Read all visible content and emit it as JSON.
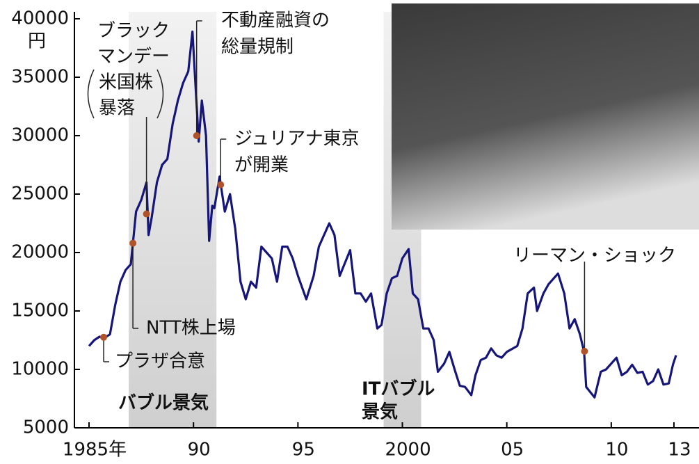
{
  "chart_data": {
    "type": "line",
    "y_unit": "円",
    "color": "#15157a",
    "xlim": [
      1984.3,
      2014.2
    ],
    "ylim": [
      5000,
      40000
    ],
    "yticks": [
      5000,
      10000,
      15000,
      20000,
      25000,
      30000,
      35000,
      40000
    ],
    "xticks": [
      {
        "value": 1985,
        "label": "1985年"
      },
      {
        "value": 1990,
        "label": "90"
      },
      {
        "value": 1995,
        "label": "95"
      },
      {
        "value": 2000,
        "label": "2000"
      },
      {
        "value": 2005,
        "label": "05"
      },
      {
        "value": 2010,
        "label": "10"
      },
      {
        "value": 2013,
        "label": "13"
      }
    ],
    "shaded": [
      {
        "lines": [
          "バブル景気"
        ],
        "start": 1986.9,
        "end": 1991.1
      },
      {
        "lines": [
          "ITバブル",
          "景気"
        ],
        "start": 1999.1,
        "end": 2000.9
      }
    ],
    "annotations": [
      {
        "lines": [
          "プラザ合意"
        ],
        "x": 1985.7,
        "value": 12750
      },
      {
        "lines": [
          "NTT株上場"
        ],
        "x": 1987.1,
        "value": 20800
      },
      {
        "lines": [
          "ブラック",
          "マンデー",
          "米国株",
          "暴落"
        ],
        "x": 1987.75,
        "value": 23300
      },
      {
        "lines": [
          "不動産融資の",
          "総量規制"
        ],
        "x": 1990.15,
        "value": 30000
      },
      {
        "lines": [
          "ジュリアナ東京",
          "が開業"
        ],
        "x": 1991.3,
        "value": 25800
      },
      {
        "lines": [
          "リーマン・ショック"
        ],
        "x": 2008.72,
        "value": 11550
      }
    ],
    "x": [
      1985.0,
      1985.25,
      1985.5,
      1985.75,
      1986.0,
      1986.25,
      1986.5,
      1986.75,
      1987.0,
      1987.25,
      1987.5,
      1987.75,
      1987.85,
      1988.0,
      1988.25,
      1988.5,
      1988.75,
      1989.0,
      1989.25,
      1989.5,
      1989.75,
      1989.95,
      1990.25,
      1990.4,
      1990.6,
      1990.75,
      1990.9,
      1991.0,
      1991.25,
      1991.5,
      1991.75,
      1992.0,
      1992.25,
      1992.5,
      1992.75,
      1993.0,
      1993.25,
      1993.5,
      1993.75,
      1994.0,
      1994.25,
      1994.5,
      1994.75,
      1995.0,
      1995.4,
      1995.75,
      1996.0,
      1996.5,
      1996.75,
      1997.0,
      1997.5,
      1997.75,
      1998.0,
      1998.25,
      1998.5,
      1998.8,
      1999.0,
      1999.25,
      1999.5,
      1999.75,
      2000.0,
      2000.3,
      2000.5,
      2000.75,
      2001.0,
      2001.25,
      2001.5,
      2001.7,
      2002.0,
      2002.25,
      2002.5,
      2002.75,
      2003.0,
      2003.3,
      2003.5,
      2003.75,
      2004.0,
      2004.25,
      2004.5,
      2004.75,
      2005.0,
      2005.5,
      2005.75,
      2006.0,
      2006.3,
      2006.45,
      2006.75,
      2007.0,
      2007.45,
      2007.75,
      2008.0,
      2008.25,
      2008.5,
      2008.7,
      2008.8,
      2009.2,
      2009.5,
      2009.75,
      2010.0,
      2010.25,
      2010.5,
      2010.75,
      2011.0,
      2011.25,
      2011.5,
      2011.75,
      2012.0,
      2012.25,
      2012.5,
      2012.75,
      2012.95,
      2013.1
    ],
    "values": [
      12000,
      12500,
      12800,
      12700,
      13000,
      15500,
      17500,
      18500,
      19000,
      23500,
      24500,
      26000,
      21500,
      23000,
      26000,
      27500,
      28000,
      31000,
      33000,
      34500,
      35500,
      38900,
      29500,
      33000,
      30000,
      21000,
      24000,
      23800,
      26500,
      23500,
      25000,
      22000,
      17500,
      16000,
      17500,
      17000,
      20500,
      20000,
      19500,
      17500,
      20500,
      20500,
      19500,
      18000,
      16000,
      18000,
      20500,
      22500,
      21500,
      18000,
      20200,
      16500,
      16500,
      15800,
      16500,
      13500,
      13800,
      16500,
      17800,
      18000,
      19500,
      20300,
      16500,
      16000,
      13500,
      13500,
      12500,
      9800,
      10500,
      11500,
      10000,
      8600,
      8500,
      7800,
      9500,
      10800,
      11000,
      11800,
      11200,
      11000,
      11500,
      12000,
      13500,
      16500,
      17000,
      15000,
      16500,
      17300,
      18200,
      16500,
      13500,
      14300,
      13000,
      11500,
      8500,
      7600,
      9800,
      10000,
      10500,
      11000,
      9500,
      9800,
      10400,
      9700,
      9800,
      8700,
      9000,
      10000,
      8700,
      8800,
      10400,
      11200
    ]
  }
}
